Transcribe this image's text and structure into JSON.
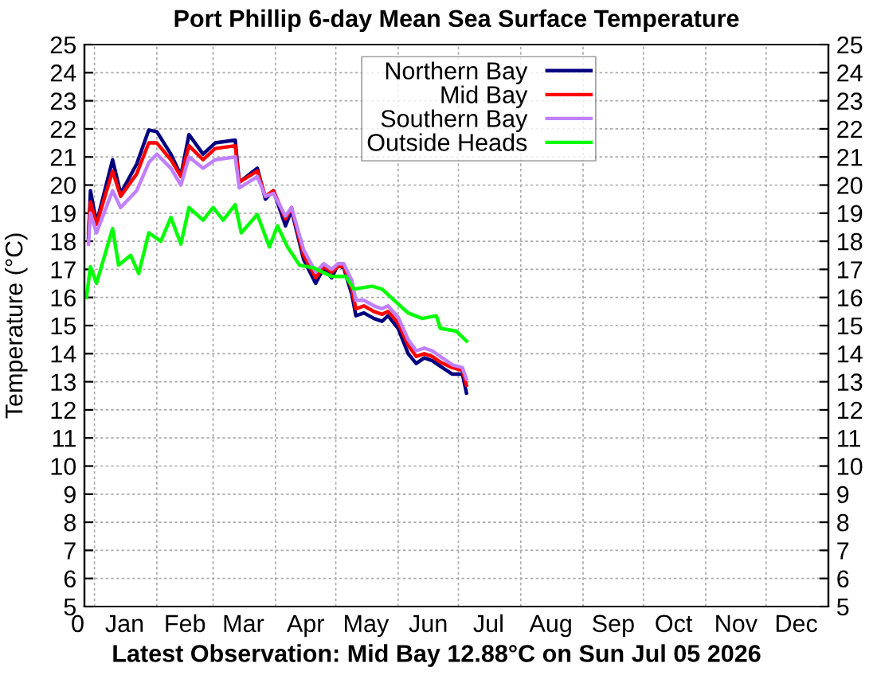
{
  "chart_data": {
    "type": "line",
    "title": "Port Phillip 6-day Mean Sea Surface Temperature",
    "ylabel": "Temperature (°C)",
    "annotations": [
      "Latest Observation: Mid Bay 12.88°C on Sun Jul 05 2026"
    ],
    "xlim": [
      "2025-12-27",
      "2027-01-01"
    ],
    "xticks": [
      {
        "value": "2025-12-27",
        "label": "0"
      },
      {
        "value": "2026-01-01",
        "label": null
      },
      {
        "value": "2026-01-16",
        "label": "Jan"
      },
      {
        "value": "2026-02-01",
        "label": null
      },
      {
        "value": "2026-02-15",
        "label": "Feb"
      },
      {
        "value": "2026-03-01",
        "label": null
      },
      {
        "value": "2026-03-16",
        "label": "Mar"
      },
      {
        "value": "2026-04-01",
        "label": null
      },
      {
        "value": "2026-04-16",
        "label": "Apr"
      },
      {
        "value": "2026-05-01",
        "label": null
      },
      {
        "value": "2026-05-16",
        "label": "May"
      },
      {
        "value": "2026-06-01",
        "label": null
      },
      {
        "value": "2026-06-16",
        "label": "Jun"
      },
      {
        "value": "2026-07-01",
        "label": null
      },
      {
        "value": "2026-07-16",
        "label": "Jul"
      },
      {
        "value": "2026-08-01",
        "label": null
      },
      {
        "value": "2026-08-16",
        "label": "Aug"
      },
      {
        "value": "2026-09-01",
        "label": null
      },
      {
        "value": "2026-09-16",
        "label": "Sep"
      },
      {
        "value": "2026-10-01",
        "label": null
      },
      {
        "value": "2026-10-16",
        "label": "Oct"
      },
      {
        "value": "2026-11-01",
        "label": null
      },
      {
        "value": "2026-11-16",
        "label": "Nov"
      },
      {
        "value": "2026-12-01",
        "label": null
      },
      {
        "value": "2026-12-16",
        "label": "Dec"
      }
    ],
    "ylim": [
      5,
      25
    ],
    "yticks": [
      5,
      6,
      7,
      8,
      9,
      10,
      11,
      12,
      13,
      14,
      15,
      16,
      17,
      18,
      19,
      20,
      21,
      22,
      23,
      24,
      25
    ],
    "y2lim": [
      5,
      25
    ],
    "y2ticks": [
      5,
      6,
      7,
      8,
      9,
      10,
      11,
      12,
      13,
      14,
      15,
      16,
      17,
      18,
      19,
      20,
      21,
      22,
      23,
      24,
      25
    ],
    "grid": true,
    "legend": "top",
    "line_style": "solid",
    "marker": "none",
    "series": [
      {
        "name": "Northern Bay",
        "color": "#000080",
        "x": [
          "2025-12-29",
          "2025-12-30",
          "2026-01-02",
          "2026-01-10",
          "2026-01-14",
          "2026-01-22",
          "2026-01-28",
          "2026-02-01",
          "2026-02-08",
          "2026-02-13",
          "2026-02-17",
          "2026-02-24",
          "2026-03-02",
          "2026-03-12",
          "2026-03-14",
          "2026-03-23",
          "2026-03-27",
          "2026-03-31",
          "2026-04-06",
          "2026-04-09",
          "2026-04-15",
          "2026-04-21",
          "2026-04-25",
          "2026-04-29",
          "2026-05-02",
          "2026-05-05",
          "2026-05-09",
          "2026-05-11",
          "2026-05-15",
          "2026-05-20",
          "2026-05-24",
          "2026-05-27",
          "2026-06-01",
          "2026-06-06",
          "2026-06-10",
          "2026-06-14",
          "2026-06-18",
          "2026-06-22",
          "2026-06-28",
          "2026-07-03",
          "2026-07-05"
        ],
        "values": [
          18.1,
          19.8,
          18.65,
          20.9,
          19.7,
          20.75,
          21.96,
          21.9,
          21.1,
          20.35,
          21.8,
          21.1,
          21.5,
          21.6,
          20.1,
          20.6,
          19.5,
          19.8,
          18.55,
          19.1,
          17.35,
          16.5,
          17.05,
          16.7,
          17.15,
          17.05,
          16.1,
          15.35,
          15.45,
          15.25,
          15.15,
          15.35,
          14.9,
          14.0,
          13.65,
          13.85,
          13.75,
          13.55,
          13.27,
          13.27,
          12.6
        ]
      },
      {
        "name": "Mid Bay",
        "color": "#ff0000",
        "x": [
          "2025-12-29",
          "2025-12-30",
          "2026-01-02",
          "2026-01-10",
          "2026-01-14",
          "2026-01-22",
          "2026-01-28",
          "2026-02-01",
          "2026-02-08",
          "2026-02-13",
          "2026-02-17",
          "2026-02-24",
          "2026-03-02",
          "2026-03-12",
          "2026-03-14",
          "2026-03-23",
          "2026-03-27",
          "2026-03-31",
          "2026-04-06",
          "2026-04-09",
          "2026-04-15",
          "2026-04-21",
          "2026-04-25",
          "2026-04-29",
          "2026-05-02",
          "2026-05-05",
          "2026-05-09",
          "2026-05-11",
          "2026-05-15",
          "2026-05-20",
          "2026-05-24",
          "2026-05-27",
          "2026-06-01",
          "2026-06-06",
          "2026-06-10",
          "2026-06-14",
          "2026-06-18",
          "2026-06-22",
          "2026-06-28",
          "2026-07-03",
          "2026-07-05"
        ],
        "values": [
          18.3,
          19.4,
          18.6,
          20.5,
          19.6,
          20.4,
          21.5,
          21.5,
          20.9,
          20.3,
          21.4,
          20.9,
          21.3,
          21.4,
          20.1,
          20.5,
          19.6,
          19.8,
          18.8,
          19.2,
          17.5,
          16.7,
          17.1,
          16.9,
          17.1,
          17.1,
          16.3,
          15.6,
          15.7,
          15.5,
          15.4,
          15.5,
          15.1,
          14.3,
          13.9,
          14.0,
          13.9,
          13.7,
          13.5,
          13.4,
          12.88
        ]
      },
      {
        "name": "Southern Bay",
        "color": "#c080ff",
        "x": [
          "2025-12-29",
          "2025-12-30",
          "2026-01-02",
          "2026-01-10",
          "2026-01-14",
          "2026-01-22",
          "2026-01-28",
          "2026-02-01",
          "2026-02-08",
          "2026-02-13",
          "2026-02-17",
          "2026-02-24",
          "2026-03-02",
          "2026-03-12",
          "2026-03-14",
          "2026-03-23",
          "2026-03-27",
          "2026-03-31",
          "2026-04-06",
          "2026-04-09",
          "2026-04-15",
          "2026-04-21",
          "2026-04-25",
          "2026-04-29",
          "2026-05-02",
          "2026-05-05",
          "2026-05-09",
          "2026-05-11",
          "2026-05-15",
          "2026-05-20",
          "2026-05-24",
          "2026-05-27",
          "2026-06-01",
          "2026-06-06",
          "2026-06-10",
          "2026-06-14",
          "2026-06-18",
          "2026-06-22",
          "2026-06-28",
          "2026-07-03",
          "2026-07-05"
        ],
        "values": [
          17.9,
          19.0,
          18.3,
          19.8,
          19.2,
          19.8,
          20.8,
          21.1,
          20.6,
          20.0,
          21.0,
          20.6,
          20.9,
          21.0,
          19.9,
          20.3,
          19.6,
          19.7,
          18.9,
          19.2,
          17.7,
          16.9,
          17.2,
          17.0,
          17.2,
          17.2,
          16.6,
          15.9,
          15.9,
          15.7,
          15.6,
          15.7,
          15.3,
          14.5,
          14.1,
          14.2,
          14.1,
          13.9,
          13.6,
          13.5,
          13.1
        ]
      },
      {
        "name": "Outside Heads",
        "color": "#00ff00",
        "x": [
          "2025-12-28",
          "2025-12-30",
          "2026-01-02",
          "2026-01-10",
          "2026-01-13",
          "2026-01-19",
          "2026-01-23",
          "2026-01-28",
          "2026-02-03",
          "2026-02-08",
          "2026-02-13",
          "2026-02-17",
          "2026-02-24",
          "2026-03-01",
          "2026-03-06",
          "2026-03-12",
          "2026-03-15",
          "2026-03-23",
          "2026-03-29",
          "2026-04-02",
          "2026-04-07",
          "2026-04-13",
          "2026-04-20",
          "2026-04-29",
          "2026-05-06",
          "2026-05-10",
          "2026-05-19",
          "2026-05-24",
          "2026-05-30",
          "2026-06-06",
          "2026-06-13",
          "2026-06-20",
          "2026-06-22",
          "2026-06-30",
          "2026-07-05"
        ],
        "values": [
          16.0,
          17.1,
          16.5,
          18.45,
          17.15,
          17.5,
          16.85,
          18.3,
          18.0,
          18.85,
          17.9,
          19.2,
          18.75,
          19.2,
          18.75,
          19.3,
          18.3,
          18.95,
          17.8,
          18.55,
          17.8,
          17.15,
          17.05,
          16.75,
          16.75,
          16.3,
          16.4,
          16.3,
          15.9,
          15.45,
          15.25,
          15.35,
          14.9,
          14.8,
          14.45
        ]
      }
    ]
  }
}
